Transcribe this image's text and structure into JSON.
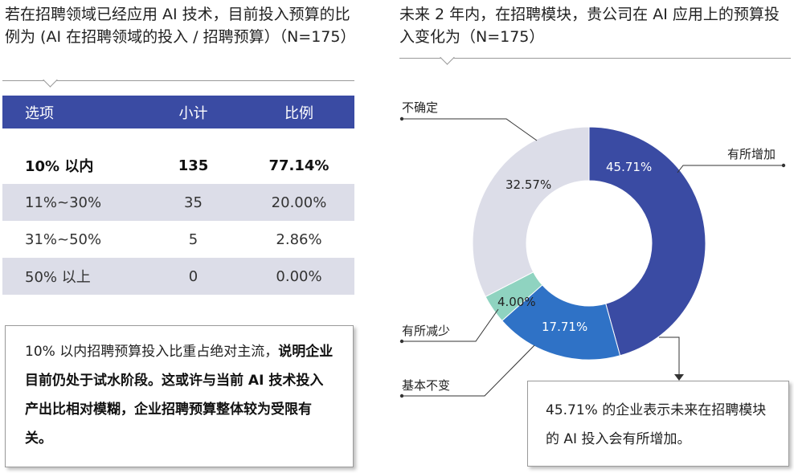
{
  "left": {
    "title": "若在招聘领域已经应用 AI 技术，目前投入预算的比例为 (AI 在招聘领域的投入 / 招聘预算）（N=175）",
    "table": {
      "headers": [
        "选项",
        "小计",
        "比例"
      ],
      "rows": [
        {
          "option": "10% 以内",
          "count": "135",
          "ratio": "77.14%"
        },
        {
          "option": "11%~30%",
          "count": "35",
          "ratio": "20.00%"
        },
        {
          "option": "31%~50%",
          "count": "5",
          "ratio": "2.86%"
        },
        {
          "option": "50% 以上",
          "count": "0",
          "ratio": "0.00%"
        }
      ]
    },
    "note_normal": "10% 以内招聘预算投入比重占绝对主流，",
    "note_bold": "说明企业目前仍处于试水阶段。这或许与当前 AI 技术投入产出比相对模糊，企业招聘预算整体较为受限有关。"
  },
  "right": {
    "title": "未来 2 年内，在招聘模块，贵公司在 AI 应用上的预算投入变化为（N=175）",
    "note": "45.71% 的企业表示未来在招聘模块的 AI 投入会有所增加。"
  },
  "chart_data": {
    "type": "pie",
    "subtype": "donut",
    "title": "未来 2 年内，在招聘模块，贵公司在 AI 应用上的预算投入变化为（N=175）",
    "slices": [
      {
        "label": "有所增加",
        "value": 45.71,
        "display": "45.71%",
        "color": "#3a4ba3"
      },
      {
        "label": "基本不变",
        "value": 17.71,
        "display": "17.71%",
        "color": "#2f72c6"
      },
      {
        "label": "有所减少",
        "value": 4.0,
        "display": "4.00%",
        "color": "#8fd3c0"
      },
      {
        "label": "不确定",
        "value": 32.57,
        "display": "32.57%",
        "color": "#dcdde8"
      }
    ],
    "start_angle": "12 o'clock, clockwise"
  },
  "colors": {
    "accent": "#3a4ba3",
    "row_shade": "#dcdde8"
  }
}
